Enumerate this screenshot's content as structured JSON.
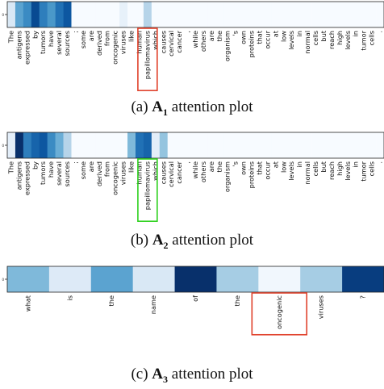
{
  "chart_data": [
    {
      "type": "heatmap",
      "id": "A1",
      "caption_prefix": "(a)",
      "caption_symbol": "A",
      "caption_subscript": "1",
      "caption_suffix": "attention plot",
      "ytick": "0",
      "tokens": [
        "The",
        "antigens",
        "expressed",
        "by",
        "tumors",
        "have",
        "several",
        "sources",
        ";",
        "some",
        "are",
        "derived",
        "from",
        "oncogenic",
        "viruses",
        "like",
        "human",
        "papillomavirus",
        "which",
        "causes",
        "cervical",
        "cancer",
        ",",
        "while",
        "others",
        "are",
        "the",
        "organism",
        "'s",
        "own",
        "proteins",
        "that",
        "occur",
        "at",
        "low",
        "levels",
        "in",
        "normal",
        "cells",
        "but",
        "reach",
        "high",
        "levels",
        "in",
        "tumor",
        "cells",
        "."
      ],
      "values": [
        0.15,
        0.55,
        0.65,
        0.9,
        0.7,
        0.6,
        0.75,
        0.85,
        0.0,
        0.0,
        0.0,
        0.0,
        0.0,
        0.0,
        0.08,
        0.0,
        0.0,
        0.3,
        0.0,
        0.0,
        0.0,
        0.0,
        0.0,
        0.0,
        0.0,
        0.0,
        0.0,
        0.0,
        0.0,
        0.0,
        0.0,
        0.0,
        0.0,
        0.0,
        0.0,
        0.0,
        0.0,
        0.0,
        0.0,
        0.0,
        0.0,
        0.0,
        0.0,
        0.0,
        0.0,
        0.0,
        0.0
      ],
      "highlight_index": 17,
      "highlight_color": "#e0412b"
    },
    {
      "type": "heatmap",
      "id": "A2",
      "caption_prefix": "(b)",
      "caption_symbol": "A",
      "caption_subscript": "2",
      "caption_suffix": "attention plot",
      "ytick": "0",
      "tokens": [
        "The",
        "antigens",
        "expressed",
        "by",
        "tumors",
        "have",
        "several",
        "sources",
        ";",
        "some",
        "are",
        "derived",
        "from",
        "oncogenic",
        "viruses",
        "like",
        "human",
        "papillomavirus",
        "which",
        "causes",
        "cervical",
        "cancer",
        ",",
        "while",
        "others",
        "are",
        "the",
        "organism",
        "'s",
        "own",
        "proteins",
        "that",
        "occur",
        "at",
        "low",
        "levels",
        "in",
        "normal",
        "cells",
        "but",
        "reach",
        "high",
        "levels",
        "in",
        "tumor",
        "cells",
        "."
      ],
      "values": [
        0.1,
        1.0,
        0.7,
        0.8,
        0.85,
        0.65,
        0.5,
        0.3,
        0.0,
        0.0,
        0.0,
        0.0,
        0.0,
        0.0,
        0.0,
        0.45,
        0.75,
        0.8,
        0.1,
        0.4,
        0.0,
        0.0,
        0.0,
        0.0,
        0.0,
        0.0,
        0.0,
        0.0,
        0.0,
        0.0,
        0.0,
        0.0,
        0.0,
        0.0,
        0.0,
        0.0,
        0.0,
        0.0,
        0.0,
        0.0,
        0.0,
        0.0,
        0.0,
        0.0,
        0.0,
        0.0,
        0.0
      ],
      "highlight_index": 17,
      "highlight_color": "#2ed11e"
    },
    {
      "type": "heatmap",
      "id": "A3",
      "caption_prefix": "(c)",
      "caption_symbol": "A",
      "caption_subscript": "3",
      "caption_suffix": "attention plot",
      "ytick": "0",
      "tokens": [
        "what",
        "is",
        "the",
        "name",
        "of",
        "the",
        "oncogenic",
        "viruses",
        "?"
      ],
      "values": [
        0.45,
        0.13,
        0.55,
        0.15,
        1.0,
        0.35,
        0.03,
        0.35,
        0.95
      ],
      "highlight_index": 6,
      "highlight_color": "#e0412b"
    }
  ]
}
